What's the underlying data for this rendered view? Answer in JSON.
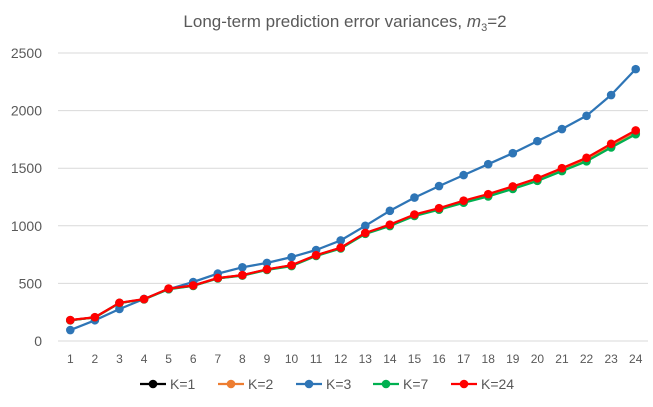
{
  "chart_data": {
    "type": "line",
    "title": {
      "main": "Long-term prediction error variances, ",
      "var": "m",
      "sub": "3",
      "tail": "=2"
    },
    "xlabel": "",
    "ylabel": "",
    "ylim": [
      0,
      2500
    ],
    "yticks": [
      "0",
      "500",
      "1000",
      "1500",
      "2000",
      "2500"
    ],
    "categories": [
      "1",
      "2",
      "3",
      "4",
      "5",
      "6",
      "7",
      "8",
      "9",
      "10",
      "11",
      "12",
      "13",
      "14",
      "15",
      "16",
      "17",
      "18",
      "19",
      "20",
      "21",
      "22",
      "23",
      "24"
    ],
    "grid": true,
    "legend_position": "bottom",
    "series": [
      {
        "name": "K=1",
        "color": "#000000",
        "values": [
          180,
          205,
          330,
          362,
          453,
          480,
          545,
          570,
          620,
          655,
          742,
          808,
          935,
          1005,
          1093,
          1148,
          1210,
          1265,
          1330,
          1400,
          1485,
          1575,
          1690,
          1805
        ]
      },
      {
        "name": "K=2",
        "color": "#ed7d31",
        "values": [
          180,
          205,
          330,
          362,
          453,
          480,
          545,
          570,
          620,
          655,
          742,
          808,
          935,
          1005,
          1093,
          1148,
          1210,
          1265,
          1330,
          1400,
          1485,
          1575,
          1690,
          1805
        ]
      },
      {
        "name": "K=3",
        "color": "#2e75b6",
        "values": [
          95,
          180,
          278,
          365,
          450,
          512,
          585,
          640,
          678,
          728,
          790,
          873,
          1000,
          1130,
          1245,
          1345,
          1440,
          1535,
          1630,
          1735,
          1840,
          1955,
          2135,
          2360
        ]
      },
      {
        "name": "K=7",
        "color": "#00b050",
        "values": [
          180,
          205,
          330,
          362,
          450,
          478,
          543,
          568,
          617,
          650,
          738,
          803,
          930,
          998,
          1085,
          1140,
          1200,
          1255,
          1320,
          1390,
          1475,
          1560,
          1680,
          1795
        ]
      },
      {
        "name": "K=24",
        "color": "#ff0000",
        "values": [
          182,
          207,
          332,
          364,
          455,
          482,
          547,
          572,
          622,
          658,
          745,
          810,
          938,
          1010,
          1098,
          1153,
          1218,
          1275,
          1342,
          1412,
          1500,
          1590,
          1712,
          1828
        ]
      }
    ]
  }
}
